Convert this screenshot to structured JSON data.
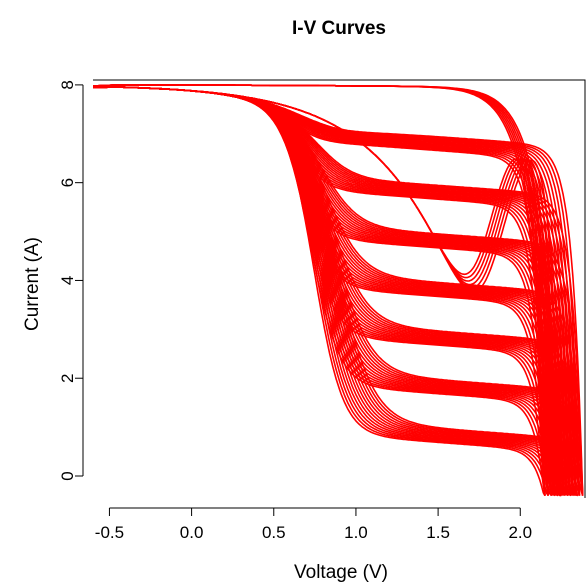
{
  "chart_data": {
    "type": "line",
    "title": "I-V Curves",
    "xlabel": "Voltage (V)",
    "ylabel": "Current (A)",
    "xlim": [
      -0.6,
      2.4
    ],
    "ylim": [
      -0.45,
      8.1
    ],
    "xticks": [
      -0.5,
      0.0,
      0.5,
      1.0,
      1.5,
      2.0
    ],
    "xtick_labels": [
      "-0.5",
      "0.0",
      "0.5",
      "1.0",
      "1.5",
      "2.0"
    ],
    "yticks": [
      0,
      2,
      4,
      6,
      8
    ],
    "ytick_labels": [
      "0",
      "2",
      "4",
      "6",
      "8"
    ],
    "color": "#ff0000",
    "grid": false,
    "legend": "none",
    "isc_start": 8.0,
    "series": [
      {
        "plateau_current": 7.0,
        "knee_voltage": 0.7,
        "voc": [
          2.15,
          2.38
        ],
        "curves": 13
      },
      {
        "plateau_current": 6.0,
        "knee_voltage": 0.72,
        "voc": [
          2.15,
          2.38
        ],
        "curves": 13
      },
      {
        "plateau_current": 5.0,
        "knee_voltage": 0.74,
        "voc": [
          2.15,
          2.38
        ],
        "curves": 13
      },
      {
        "plateau_current": 4.0,
        "knee_voltage": 0.76,
        "voc": [
          2.15,
          2.38
        ],
        "curves": 13
      },
      {
        "plateau_current": 3.0,
        "knee_voltage": 0.78,
        "voc": [
          2.15,
          2.38
        ],
        "curves": 13
      },
      {
        "plateau_current": 2.0,
        "knee_voltage": 0.8,
        "voc": [
          2.15,
          2.38
        ],
        "curves": 13
      },
      {
        "plateau_current": 1.0,
        "knee_voltage": 0.82,
        "voc": [
          2.15,
          2.38
        ],
        "curves": 13
      },
      {
        "plateau_current": 8.0,
        "knee_voltage": 1.85,
        "voc": [
          2.15,
          2.38
        ],
        "curves": 13
      }
    ]
  }
}
